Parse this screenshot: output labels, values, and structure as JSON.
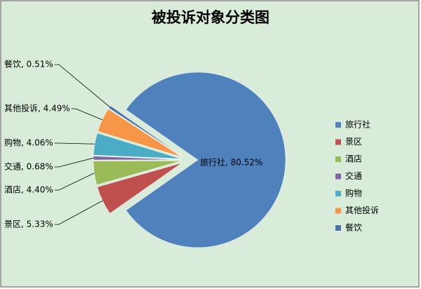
{
  "chart_data": {
    "type": "pie",
    "title": "被投诉对象分类图",
    "categories": [
      "旅行社",
      "景区",
      "酒店",
      "交通",
      "购物",
      "其他投诉",
      "餐饮"
    ],
    "values": [
      80.52,
      5.33,
      4.4,
      0.68,
      4.06,
      4.49,
      0.51
    ],
    "value_labels": [
      "旅行社, 80.52%",
      "景区, 5.33%",
      "酒店, 4.40%",
      "交通, 0.68%",
      "购物, 4.06%",
      "其他投诉, 4.49%",
      "餐饮, 0.51%"
    ],
    "colors": [
      "#4f81bd",
      "#c0504d",
      "#9bbb59",
      "#8064a2",
      "#4bacc6",
      "#f79646",
      "#4a74aa"
    ],
    "legend": "right"
  }
}
